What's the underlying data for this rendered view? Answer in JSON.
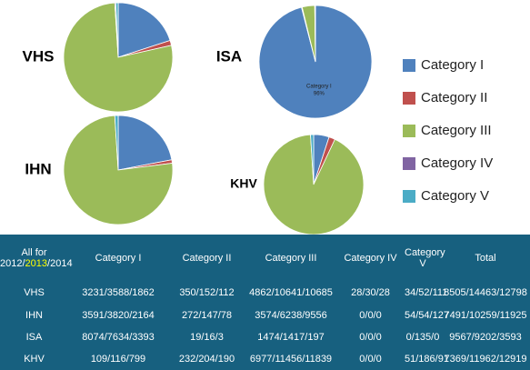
{
  "chart_data": [
    {
      "type": "pie",
      "title": "VHS",
      "categories": [
        "Category I",
        "Category II",
        "Category III",
        "Category IV",
        "Category V"
      ],
      "colors": [
        "#4f81bd",
        "#c0504d",
        "#9bbb59",
        "#8064a2",
        "#4bacc6"
      ],
      "values": [
        20,
        1.5,
        77.5,
        0.3,
        0.7
      ]
    },
    {
      "type": "pie",
      "title": "ISA",
      "categories": [
        "Category I",
        "Category II",
        "Category III",
        "Category IV",
        "Category V"
      ],
      "colors": [
        "#4f81bd",
        "#c0504d",
        "#9bbb59",
        "#8064a2",
        "#4bacc6"
      ],
      "values": [
        96,
        0.2,
        3.6,
        0.1,
        0.1
      ],
      "value_labels": [
        "96%",
        null,
        null,
        null,
        null
      ]
    },
    {
      "type": "pie",
      "title": "IHN",
      "categories": [
        "Category I",
        "Category II",
        "Category III",
        "Category IV",
        "Category V"
      ],
      "colors": [
        "#4f81bd",
        "#c0504d",
        "#9bbb59",
        "#8064a2",
        "#4bacc6"
      ],
      "values": [
        22,
        1,
        76,
        0,
        1
      ]
    },
    {
      "type": "pie",
      "title": "KHV",
      "categories": [
        "Category I",
        "Category II",
        "Category III",
        "Category IV",
        "Category V"
      ],
      "colors": [
        "#4f81bd",
        "#c0504d",
        "#9bbb59",
        "#8064a2",
        "#4bacc6"
      ],
      "values": [
        5,
        2,
        92,
        0,
        1
      ]
    }
  ],
  "table": {
    "corner": {
      "text": "All for",
      "years": [
        "2012",
        "2013",
        "2014"
      ],
      "separator": "/",
      "highlight": 1,
      "highlight_color": "#ffff00"
    },
    "header": [
      "Category I",
      "Category II",
      "Category III",
      "Category IV",
      "Category V",
      "Total"
    ],
    "rows": [
      [
        "VHS",
        "3231/3588/1862",
        "350/152/112",
        "4862/10641/10685",
        "28/30/28",
        "34/52/111",
        "8505/14463/12798"
      ],
      [
        "IHN",
        "3591/3820/2164",
        "272/147/78",
        "3574/6238/9556",
        "0/0/0",
        "54/54/127",
        "7491/10259/11925"
      ],
      [
        "ISA",
        "8074/7634/3393",
        "19/16/3",
        "1474/1417/197",
        "0/0/0",
        "0/135/0",
        "9567/9202/3593"
      ],
      [
        "KHV",
        "109/116/799",
        "232/204/190",
        "6977/11456/11839",
        "0/0/0",
        "51/186/91",
        "7369/11962/12919"
      ]
    ]
  }
}
